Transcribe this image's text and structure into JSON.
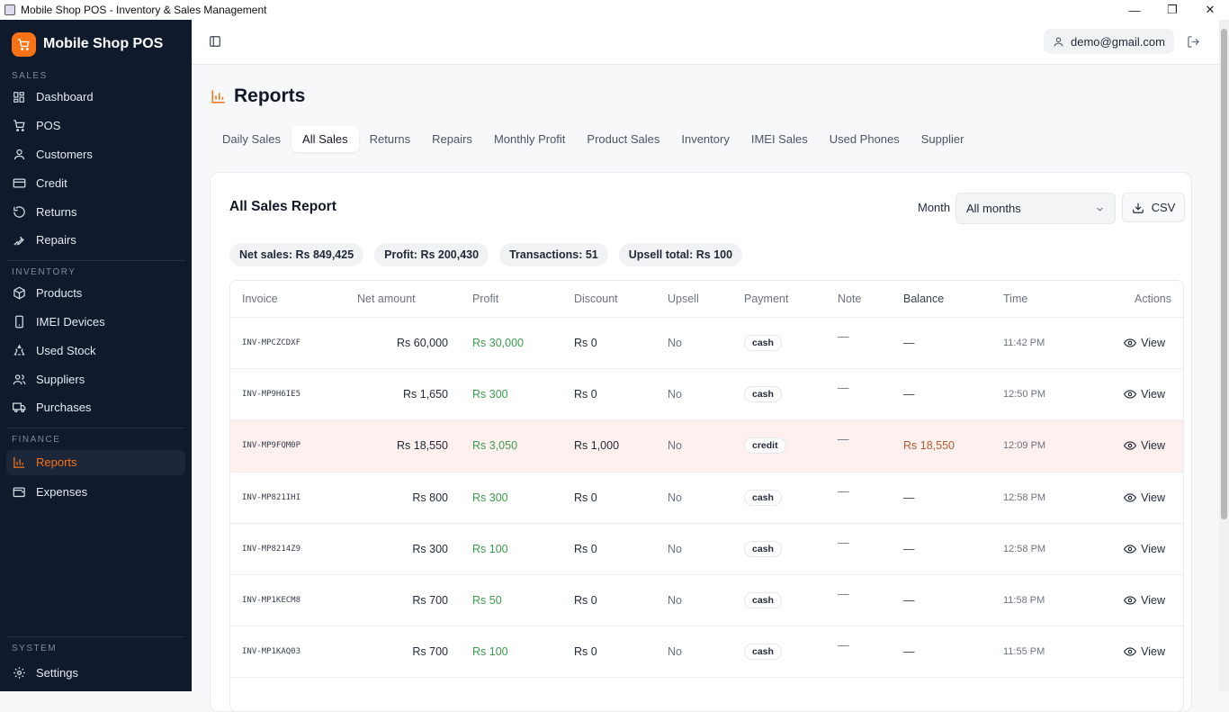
{
  "window": {
    "title": "Mobile Shop POS - Inventory & Sales Management"
  },
  "brand": {
    "name": "Mobile Shop POS",
    "accent": "#f97316"
  },
  "sidebar": {
    "sections": [
      {
        "label": "SALES",
        "items": [
          {
            "label": "Dashboard",
            "icon": "dashboard-icon"
          },
          {
            "label": "POS",
            "icon": "cart-icon"
          },
          {
            "label": "Customers",
            "icon": "user-icon"
          },
          {
            "label": "Credit",
            "icon": "credit-card-icon"
          },
          {
            "label": "Returns",
            "icon": "return-icon"
          },
          {
            "label": "Repairs",
            "icon": "wrench-icon"
          }
        ]
      },
      {
        "label": "INVENTORY",
        "items": [
          {
            "label": "Products",
            "icon": "package-icon"
          },
          {
            "label": "IMEI Devices",
            "icon": "phone-icon"
          },
          {
            "label": "Used Stock",
            "icon": "recycle-icon"
          },
          {
            "label": "Suppliers",
            "icon": "users-icon"
          },
          {
            "label": "Purchases",
            "icon": "truck-icon"
          }
        ]
      },
      {
        "label": "FINANCE",
        "items": [
          {
            "label": "Reports",
            "icon": "chart-icon"
          },
          {
            "label": "Expenses",
            "icon": "wallet-icon"
          }
        ]
      },
      {
        "label": "SYSTEM",
        "items": [
          {
            "label": "Settings",
            "icon": "gear-icon"
          }
        ]
      }
    ],
    "active": "Reports"
  },
  "topbar": {
    "user_email": "demo@gmail.com"
  },
  "page": {
    "title": "Reports"
  },
  "tabs": [
    "Daily Sales",
    "All Sales",
    "Returns",
    "Repairs",
    "Monthly Profit",
    "Product Sales",
    "Inventory",
    "IMEI Sales",
    "Used Phones",
    "Supplier"
  ],
  "active_tab": "All Sales",
  "report": {
    "title": "All Sales Report",
    "month_label": "Month",
    "month_value": "All months",
    "csv_label": "CSV",
    "stats": [
      "Net sales: Rs 849,425",
      "Profit: Rs 200,430",
      "Transactions: 51",
      "Upsell total: Rs 100"
    ],
    "columns": [
      "Invoice",
      "Net amount",
      "Profit",
      "Discount",
      "Upsell",
      "Payment",
      "Note",
      "Balance",
      "Time",
      "Actions"
    ],
    "rows": [
      {
        "invoice": "INV-MPCZCDXF",
        "net": "Rs 60,000",
        "profit": "Rs 30,000",
        "discount": "Rs 0",
        "upsell": "No",
        "payment": "cash",
        "note": "—",
        "balance": "—",
        "time": "11:42 PM",
        "action": "View"
      },
      {
        "invoice": "INV-MP9H6IE5",
        "net": "Rs 1,650",
        "profit": "Rs 300",
        "discount": "Rs 0",
        "upsell": "No",
        "payment": "cash",
        "note": "—",
        "balance": "—",
        "time": "12:50 PM",
        "action": "View"
      },
      {
        "invoice": "INV-MP9FQM0P",
        "net": "Rs 18,550",
        "profit": "Rs 3,050",
        "discount": "Rs 1,000",
        "upsell": "No",
        "payment": "credit",
        "note": "—",
        "balance": "Rs 18,550",
        "time": "12:09 PM",
        "action": "View"
      },
      {
        "invoice": "INV-MP821IHI",
        "net": "Rs 800",
        "profit": "Rs 300",
        "discount": "Rs 0",
        "upsell": "No",
        "payment": "cash",
        "note": "—",
        "balance": "—",
        "time": "12:58 PM",
        "action": "View"
      },
      {
        "invoice": "INV-MP8214Z9",
        "net": "Rs 300",
        "profit": "Rs 100",
        "discount": "Rs 0",
        "upsell": "No",
        "payment": "cash",
        "note": "—",
        "balance": "—",
        "time": "12:58 PM",
        "action": "View"
      },
      {
        "invoice": "INV-MP1KECM8",
        "net": "Rs 700",
        "profit": "Rs 50",
        "discount": "Rs 0",
        "upsell": "No",
        "payment": "cash",
        "note": "—",
        "balance": "—",
        "time": "11:58 PM",
        "action": "View"
      },
      {
        "invoice": "INV-MP1KAQ03",
        "net": "Rs 700",
        "profit": "Rs 100",
        "discount": "Rs 0",
        "upsell": "No",
        "payment": "cash",
        "note": "—",
        "balance": "—",
        "time": "11:55 PM",
        "action": "View"
      }
    ]
  }
}
